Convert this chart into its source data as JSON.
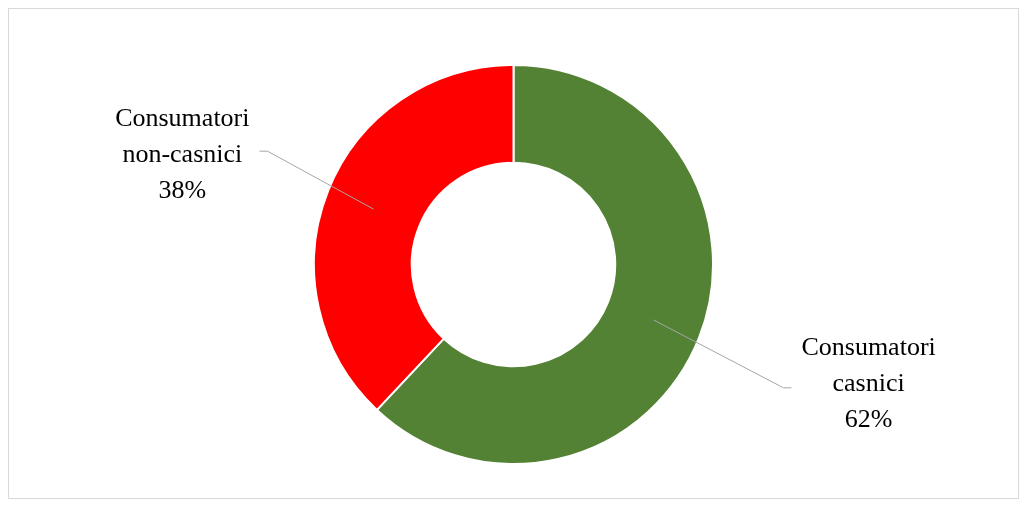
{
  "chart_data": {
    "type": "donut",
    "categories": [
      "Consumatori casnici",
      "Consumatori non-casnici"
    ],
    "values": [
      62,
      38
    ],
    "colors": [
      "#548235",
      "#ff0000"
    ],
    "value_labels": [
      "62%",
      "38%"
    ],
    "legend": false
  }
}
